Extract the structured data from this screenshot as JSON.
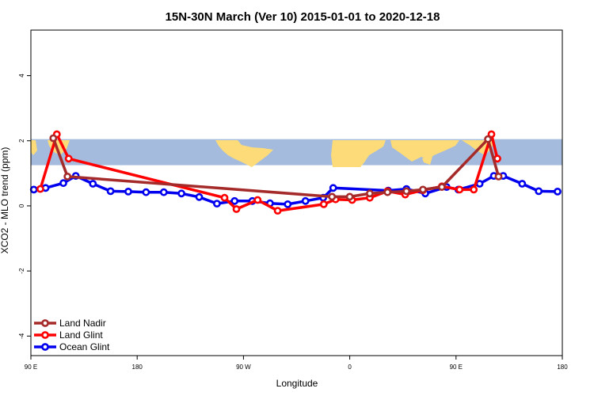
{
  "chart_data": {
    "type": "line",
    "title": "15N-30N March (Ver 10)   2015-01-01 to 2020-12-18",
    "xlabel": "Longitude",
    "ylabel": "XCO2 - MLO trend (ppm)",
    "xlim": [
      90,
      540
    ],
    "ylim": [
      -4.6,
      5.4
    ],
    "x_ticks": [
      {
        "value": 90,
        "label": "90 E"
      },
      {
        "value": 180,
        "label": "180"
      },
      {
        "value": 270,
        "label": "90 W"
      },
      {
        "value": 360,
        "label": "0"
      },
      {
        "value": 450,
        "label": "90 E"
      },
      {
        "value": 540,
        "label": "180"
      }
    ],
    "y_ticks": [
      {
        "value": -4,
        "label": "-4"
      },
      {
        "value": -2,
        "label": "-2"
      },
      {
        "value": 0,
        "label": "0"
      },
      {
        "value": 2,
        "label": "2"
      },
      {
        "value": 4,
        "label": "4"
      }
    ],
    "grid": false,
    "legend_position": "bottom-left",
    "map_band": {
      "y_top": 2.05,
      "y_bottom": 1.25,
      "ocean_color": "#a4bbdd",
      "land_color": "#fddb79"
    },
    "series": [
      {
        "name": "Ocean Glint",
        "color": "#0000ee",
        "x": [
          92.5,
          102.5,
          117.5,
          128,
          142.5,
          157.5,
          172.5,
          187.5,
          202.5,
          217.5,
          232.5,
          247.5,
          262.5,
          277.5,
          292.5,
          307.5,
          322.5,
          337.5,
          346,
          392.5,
          408,
          424,
          442,
          452,
          470,
          482,
          490,
          506,
          520,
          536
        ],
        "y": [
          0.5,
          0.55,
          0.7,
          0.92,
          0.68,
          0.45,
          0.44,
          0.42,
          0.42,
          0.38,
          0.27,
          0.07,
          0.15,
          0.15,
          0.08,
          0.05,
          0.15,
          0.25,
          0.55,
          0.47,
          0.52,
          0.38,
          0.58,
          0.5,
          0.68,
          0.92,
          0.92,
          0.68,
          0.45,
          0.44
        ]
      },
      {
        "name": "Land Glint",
        "color": "#ff0000",
        "x": [
          98,
          112,
          122,
          254,
          264,
          282,
          299,
          338,
          348,
          362,
          377,
          392,
          407,
          422,
          438,
          453,
          465,
          480,
          485
        ],
        "y": [
          0.52,
          2.2,
          1.45,
          0.25,
          -0.1,
          0.18,
          -0.15,
          0.05,
          0.2,
          0.18,
          0.25,
          0.45,
          0.35,
          0.48,
          0.6,
          0.5,
          0.5,
          2.2,
          1.45
        ]
      },
      {
        "name": "Land Nadir",
        "color": "#a52a2a",
        "x": [
          109,
          121,
          345,
          360,
          377,
          392,
          408,
          422,
          438,
          477,
          486
        ],
        "y": [
          2.08,
          0.9,
          0.28,
          0.28,
          0.38,
          0.42,
          0.45,
          0.5,
          0.58,
          2.05,
          0.9
        ]
      }
    ]
  }
}
